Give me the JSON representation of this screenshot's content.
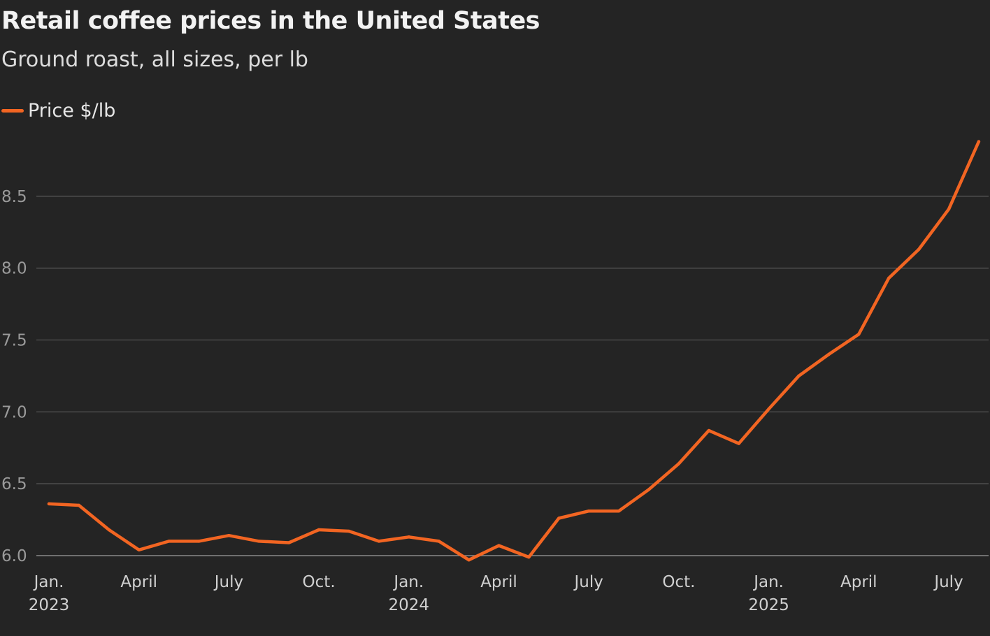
{
  "chart_data": {
    "type": "line",
    "title": "Retail coffee prices in the United States",
    "subtitle": "Ground roast, all sizes, per lb",
    "xlabel": "",
    "ylabel": "",
    "ylim": [
      5.97,
      8.95
    ],
    "yticks": [
      {
        "value": 6.0,
        "label": "6.0"
      },
      {
        "value": 6.5,
        "label": "6.5"
      },
      {
        "value": 7.0,
        "label": "7.0"
      },
      {
        "value": 7.5,
        "label": "7.5"
      },
      {
        "value": 8.0,
        "label": "8.0"
      },
      {
        "value": 8.5,
        "label": "8.5"
      }
    ],
    "xticks": [
      {
        "index": 0,
        "line1": "Jan.",
        "line2": "2023"
      },
      {
        "index": 3,
        "line1": "April",
        "line2": ""
      },
      {
        "index": 6,
        "line1": "July",
        "line2": ""
      },
      {
        "index": 9,
        "line1": "Oct.",
        "line2": ""
      },
      {
        "index": 12,
        "line1": "Jan.",
        "line2": "2024"
      },
      {
        "index": 15,
        "line1": "April",
        "line2": ""
      },
      {
        "index": 18,
        "line1": "July",
        "line2": ""
      },
      {
        "index": 21,
        "line1": "Oct.",
        "line2": ""
      },
      {
        "index": 24,
        "line1": "Jan.",
        "line2": "2025"
      },
      {
        "index": 27,
        "line1": "April",
        "line2": ""
      },
      {
        "index": 30,
        "line1": "July",
        "line2": ""
      }
    ],
    "grid": true,
    "legend_position": "top-left",
    "series": [
      {
        "name": "Price $/lb",
        "color": "#f26522",
        "x": [
          "2023-01",
          "2023-02",
          "2023-03",
          "2023-04",
          "2023-05",
          "2023-06",
          "2023-07",
          "2023-08",
          "2023-09",
          "2023-10",
          "2023-11",
          "2023-12",
          "2024-01",
          "2024-02",
          "2024-03",
          "2024-04",
          "2024-05",
          "2024-06",
          "2024-07",
          "2024-08",
          "2024-09",
          "2024-10",
          "2024-11",
          "2024-12",
          "2025-01",
          "2025-02",
          "2025-03",
          "2025-04",
          "2025-05",
          "2025-06",
          "2025-07",
          "2025-08"
        ],
        "values": [
          6.36,
          6.35,
          6.18,
          6.04,
          6.1,
          6.1,
          6.14,
          6.1,
          6.09,
          6.18,
          6.17,
          6.1,
          6.13,
          6.1,
          5.97,
          6.07,
          5.99,
          6.26,
          6.31,
          6.31,
          6.46,
          6.64,
          6.87,
          6.78,
          7.02,
          7.25,
          7.4,
          7.54,
          7.93,
          8.13,
          8.41,
          8.88
        ]
      }
    ]
  }
}
